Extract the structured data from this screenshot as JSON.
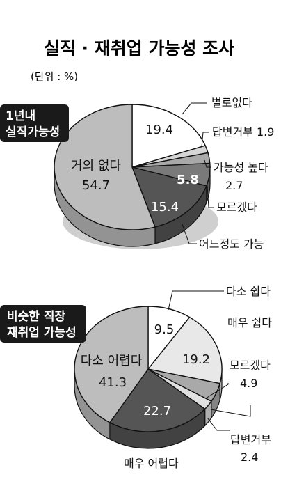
{
  "title": "실직 · 재취업 가능성 조사",
  "unit": "(단위 : %)",
  "colors": {
    "background": "#ffffff",
    "badge": "#1a1a1a",
    "pie_outline": "#111111"
  },
  "chart_data": [
    {
      "type": "pie",
      "id": "chart-unemployment",
      "badge_lines": [
        "1년내",
        "실직가능성"
      ],
      "slices": [
        {
          "label": "별로없다",
          "value": 19.4,
          "color": "#ffffff"
        },
        {
          "label": "답변거부",
          "value": 1.9,
          "color": "#d6d6d6"
        },
        {
          "label": "가능성 높다",
          "value": 2.7,
          "color": "#a9a9a9"
        },
        {
          "label": "모르겠다",
          "value": 5.8,
          "color": "#7a7a7a"
        },
        {
          "label": "어느정도 가능",
          "value": 15.4,
          "color": "#555555"
        },
        {
          "label": "거의 없다",
          "value": 54.7,
          "color": "#bdbdbd"
        }
      ]
    },
    {
      "type": "pie",
      "id": "chart-reemployment",
      "badge_lines": [
        "비슷한 직장",
        "재취업 가능성"
      ],
      "slices": [
        {
          "label": "다소 쉽다",
          "value": 9.5,
          "color": "#ffffff"
        },
        {
          "label": "매우 쉽다",
          "value": 19.2,
          "color": "#e8e8e8"
        },
        {
          "label": "모르겠다",
          "value": 4.9,
          "color": "#a9a9a9"
        },
        {
          "label": "답변거부",
          "value": 2.4,
          "color": "#e0e0e0"
        },
        {
          "label": "매우 어렵다",
          "value": 22.7,
          "color": "#555555"
        },
        {
          "label": "다소 어렵다",
          "value": 41.3,
          "color": "#bdbdbd"
        }
      ]
    }
  ],
  "labels": {
    "c1": {
      "s0_name": "별로없다",
      "s0_value": "19.4",
      "s1_text": "답변거부 1.9",
      "s2_name": "가능성 높다",
      "s2_value": "2.7",
      "s3_value": "5.8",
      "s3_name": "모르겠다",
      "s4_value": "15.4",
      "s4_name": "어느정도 가능",
      "s5_name": "거의 없다",
      "s5_value": "54.7"
    },
    "c2": {
      "s0_name": "다소 쉽다",
      "s0_value": "9.5",
      "s1_name": "매우 쉽다",
      "s1_value": "19.2",
      "s2_name": "모르겠다",
      "s2_value": "4.9",
      "s3_name": "답변거부",
      "s3_value": "2.4",
      "s4_value": "22.7",
      "s4_name": "매우 어렵다",
      "s5_name": "다소 어렵다",
      "s5_value": "41.3"
    }
  }
}
